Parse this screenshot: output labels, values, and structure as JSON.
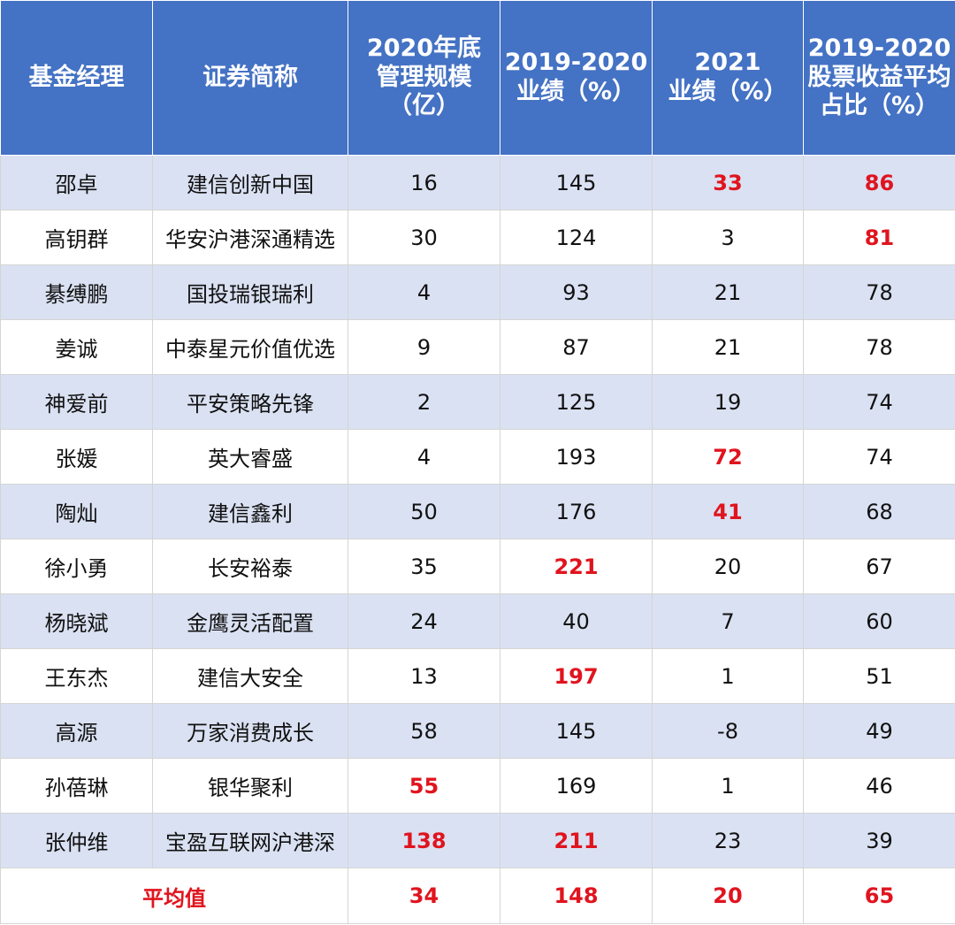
{
  "table": {
    "headers": [
      "基金经理",
      "证券简称",
      "2020年底\n管理规模\n（亿）",
      "2019-2020\n业绩（%）",
      "2021\n业绩（%）",
      "2019-2020\n股票收益平均\n占比（%）"
    ],
    "rows": [
      {
        "manager": "邵卓",
        "fund": "建信创新中国",
        "aum": "16",
        "perf_1920": "145",
        "perf_21": "33",
        "stock_ratio": "86"
      },
      {
        "manager": "高钥群",
        "fund": "华安沪港深通精选",
        "aum": "30",
        "perf_1920": "124",
        "perf_21": "3",
        "stock_ratio": "81"
      },
      {
        "manager": "綦缚鹏",
        "fund": "国投瑞银瑞利",
        "aum": "4",
        "perf_1920": "93",
        "perf_21": "21",
        "stock_ratio": "78"
      },
      {
        "manager": "姜诚",
        "fund": "中泰星元价值优选",
        "aum": "9",
        "perf_1920": "87",
        "perf_21": "21",
        "stock_ratio": "78"
      },
      {
        "manager": "神爱前",
        "fund": "平安策略先锋",
        "aum": "2",
        "perf_1920": "125",
        "perf_21": "19",
        "stock_ratio": "74"
      },
      {
        "manager": "张媛",
        "fund": "英大睿盛",
        "aum": "4",
        "perf_1920": "193",
        "perf_21": "72",
        "stock_ratio": "74"
      },
      {
        "manager": "陶灿",
        "fund": "建信鑫利",
        "aum": "50",
        "perf_1920": "176",
        "perf_21": "41",
        "stock_ratio": "68"
      },
      {
        "manager": "徐小勇",
        "fund": "长安裕泰",
        "aum": "35",
        "perf_1920": "221",
        "perf_21": "20",
        "stock_ratio": "67"
      },
      {
        "manager": "杨晓斌",
        "fund": "金鹰灵活配置",
        "aum": "24",
        "perf_1920": "40",
        "perf_21": "7",
        "stock_ratio": "60"
      },
      {
        "manager": "王东杰",
        "fund": "建信大安全",
        "aum": "13",
        "perf_1920": "197",
        "perf_21": "1",
        "stock_ratio": "51"
      },
      {
        "manager": "高源",
        "fund": "万家消费成长",
        "aum": "58",
        "perf_1920": "145",
        "perf_21": "-8",
        "stock_ratio": "49"
      },
      {
        "manager": "孙蓓琳",
        "fund": "银华聚利",
        "aum": "55",
        "perf_1920": "169",
        "perf_21": "1",
        "stock_ratio": "46"
      },
      {
        "manager": "张仲维",
        "fund": "宝盈互联网沪港深",
        "aum": "138",
        "perf_1920": "211",
        "perf_21": "23",
        "stock_ratio": "39"
      }
    ],
    "highlights": {
      "0": [
        "perf_21",
        "stock_ratio"
      ],
      "1": [
        "stock_ratio"
      ],
      "5": [
        "perf_21"
      ],
      "6": [
        "perf_21"
      ],
      "7": [
        "perf_1920"
      ],
      "9": [
        "perf_1920"
      ],
      "11": [
        "aum"
      ],
      "12": [
        "aum",
        "perf_1920"
      ]
    },
    "average": {
      "label": "平均值",
      "aum": "34",
      "perf_1920": "148",
      "perf_21": "20",
      "stock_ratio": "65"
    }
  },
  "colors": {
    "header_bg": "#4472c4",
    "header_text": "#ffffff",
    "band_row": "#dae1f2",
    "highlight_text": "#e0141e"
  }
}
